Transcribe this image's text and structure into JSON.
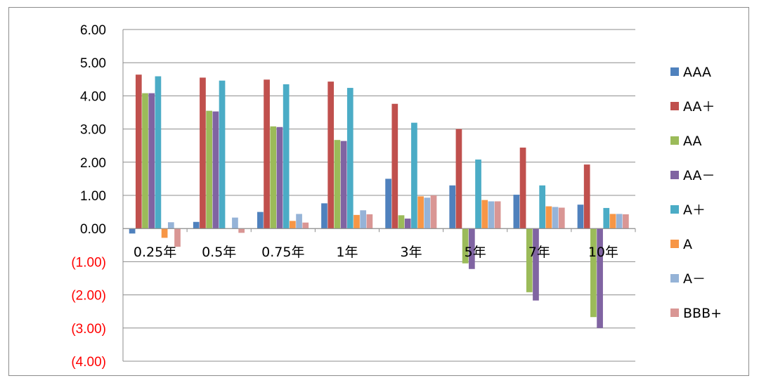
{
  "chart_data": {
    "type": "bar",
    "categories": [
      "0.25年",
      "0.5年",
      "0.75年",
      "1年",
      "3年",
      "5年",
      "7年",
      "10年"
    ],
    "series": [
      {
        "name": "AAA",
        "color": "#4f81bd",
        "values": [
          -0.15,
          0.2,
          0.5,
          0.76,
          1.5,
          1.3,
          1.02,
          0.72
        ]
      },
      {
        "name": "AA＋",
        "color": "#c0504d",
        "values": [
          4.64,
          4.55,
          4.49,
          4.43,
          3.76,
          3.0,
          2.44,
          1.93
        ]
      },
      {
        "name": "AA",
        "color": "#9bbb59",
        "values": [
          4.08,
          3.55,
          3.08,
          2.67,
          0.4,
          -1.05,
          -1.92,
          -2.67
        ]
      },
      {
        "name": "AA－",
        "color": "#8064a2",
        "values": [
          4.08,
          3.53,
          3.06,
          2.64,
          0.3,
          -1.22,
          -2.17,
          -3.0
        ]
      },
      {
        "name": "A＋",
        "color": "#4bacc6",
        "values": [
          4.59,
          4.46,
          4.35,
          4.24,
          3.19,
          2.08,
          1.3,
          0.62
        ]
      },
      {
        "name": "A",
        "color": "#f79646",
        "values": [
          -0.28,
          null,
          0.23,
          0.41,
          0.97,
          0.86,
          0.67,
          0.44
        ]
      },
      {
        "name": "A－",
        "color": "#95b3d7",
        "values": [
          0.19,
          0.33,
          0.44,
          0.55,
          0.93,
          0.82,
          0.65,
          0.44
        ]
      },
      {
        "name": "BBB+",
        "color": "#d99694",
        "values": [
          -0.55,
          -0.13,
          0.18,
          0.43,
          1.0,
          0.82,
          0.63,
          0.43
        ]
      }
    ],
    "yticks": [
      "6.00",
      "5.00",
      "4.00",
      "3.00",
      "2.00",
      "1.00",
      "0.00",
      "(1.00)",
      "(2.00)",
      "(3.00)",
      "(4.00)"
    ],
    "ylim": [
      -4,
      6
    ],
    "negative_tick_color": "#ff0000",
    "grid": true,
    "legend_position": "right"
  }
}
